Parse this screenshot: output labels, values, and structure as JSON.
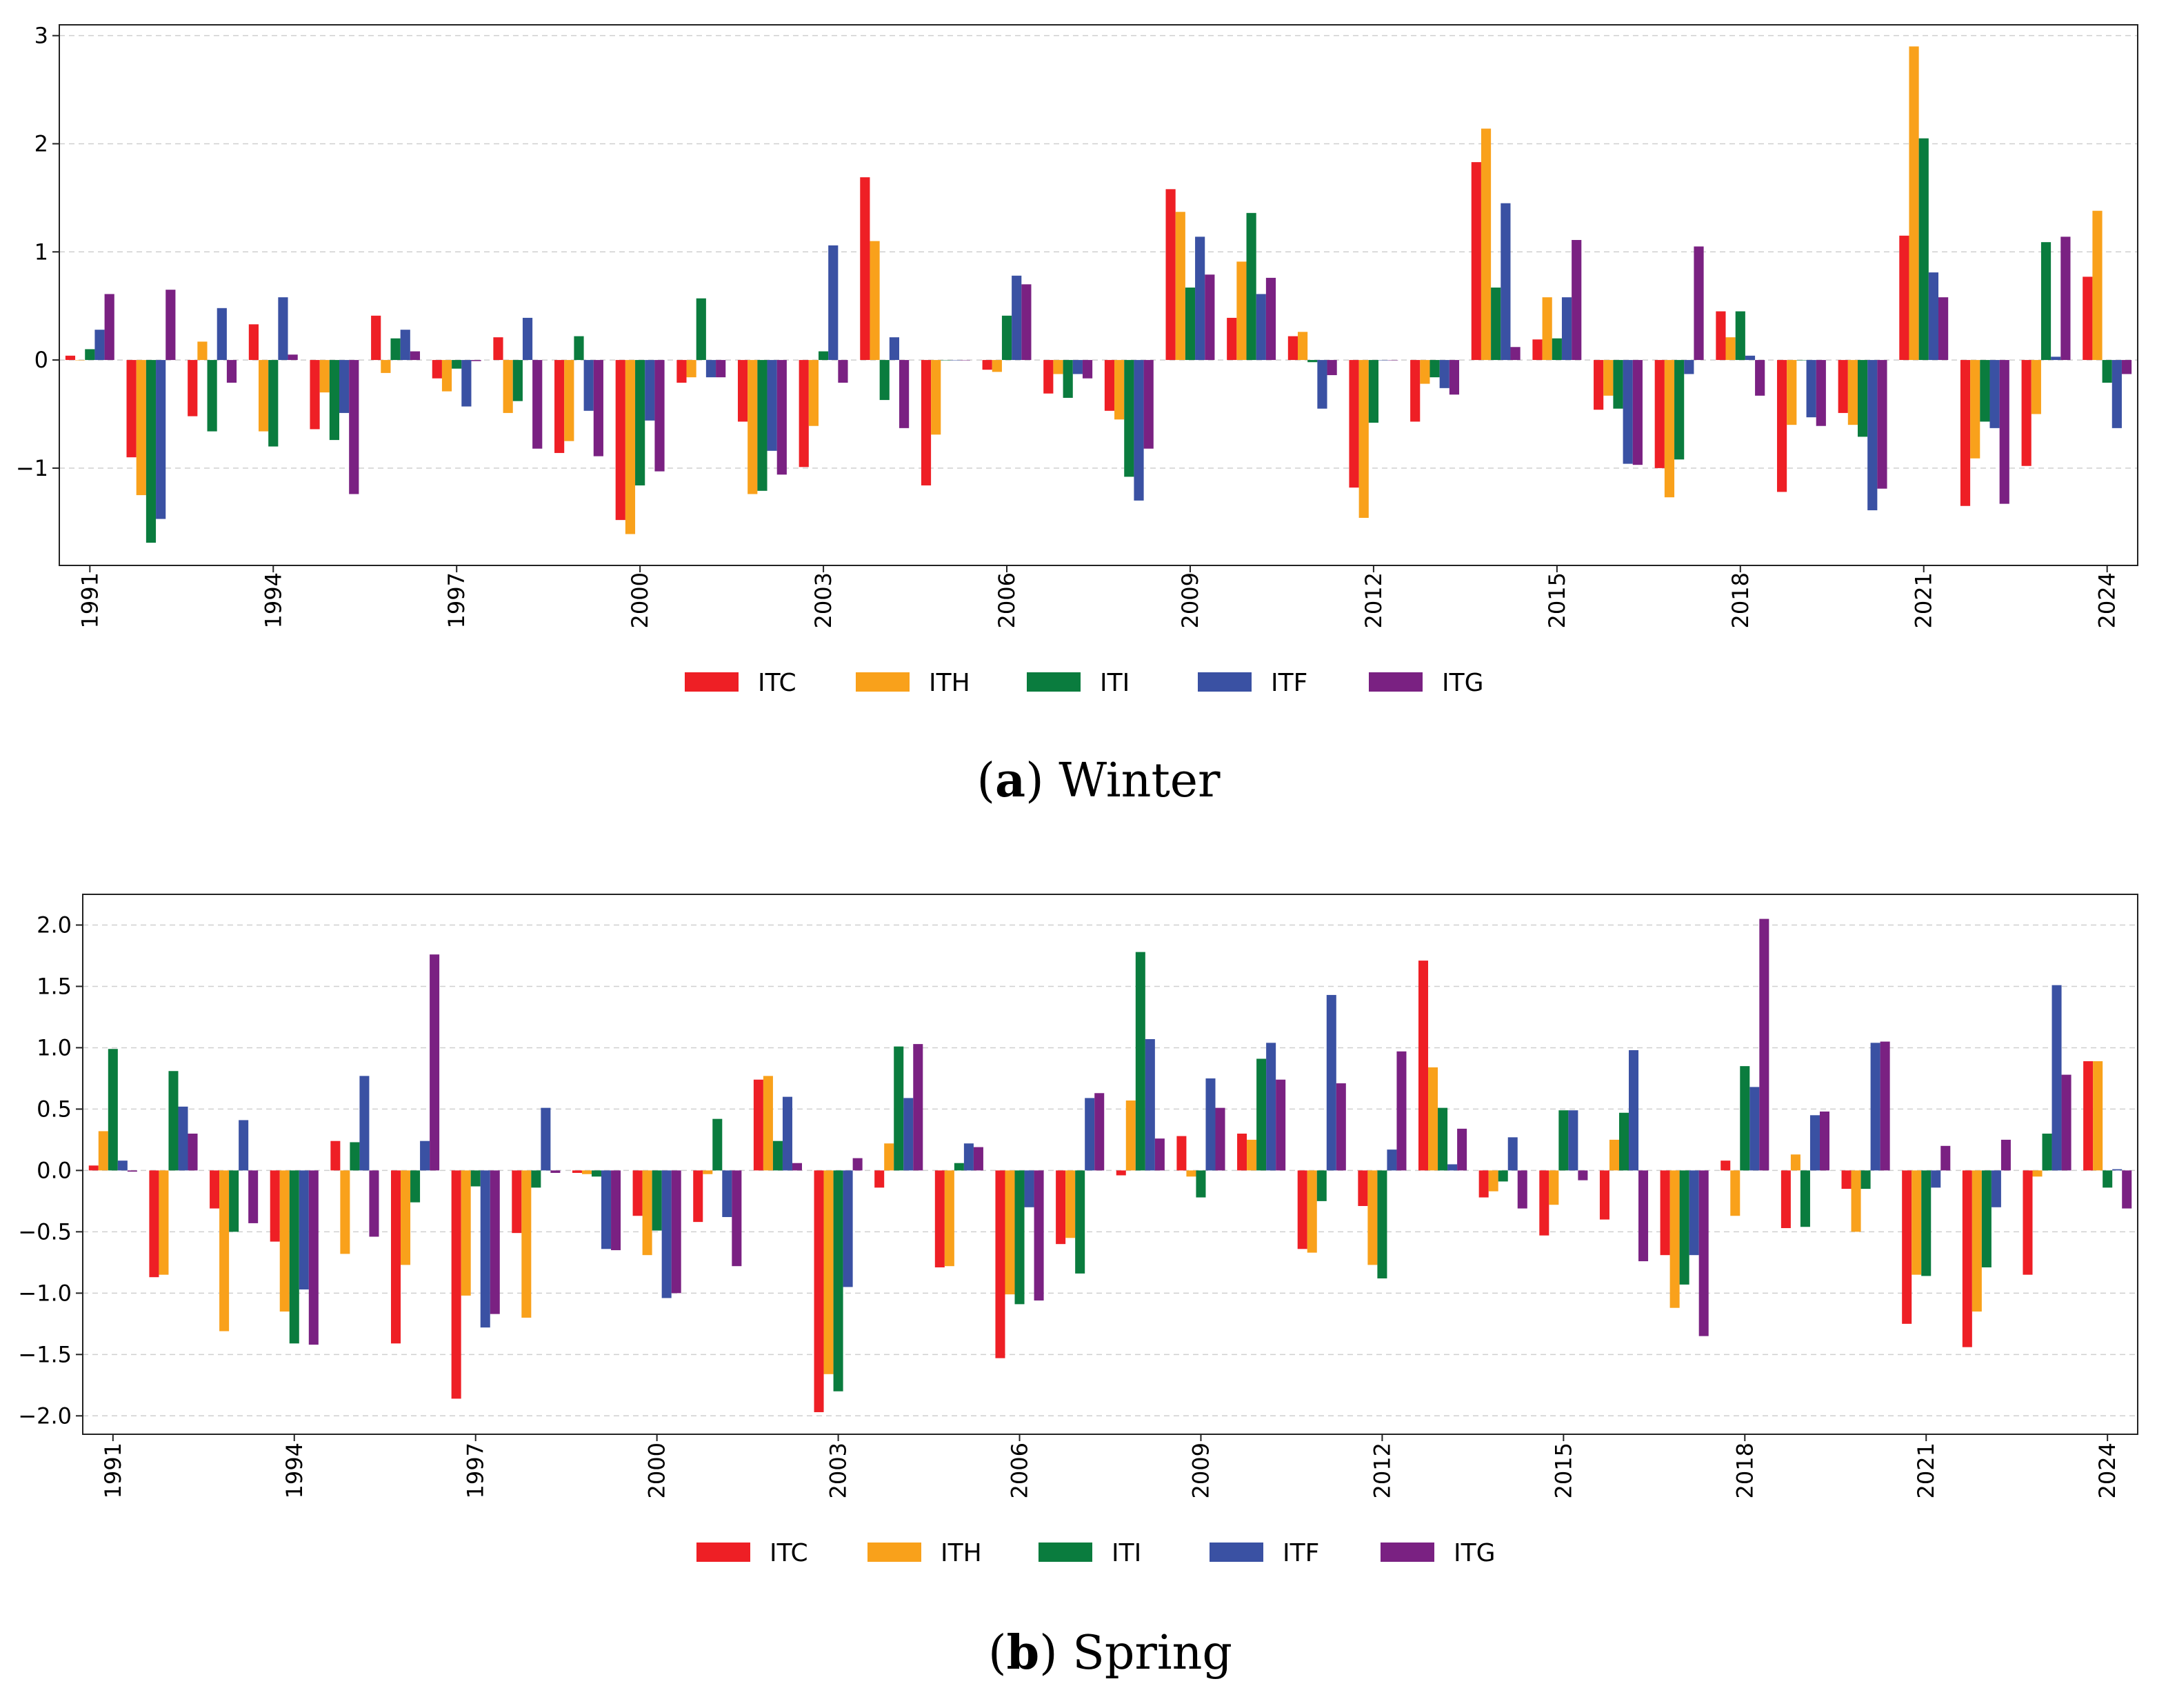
{
  "chart_data": [
    {
      "type": "bar",
      "panel": "a",
      "caption": "Winter",
      "caption_letter": "a",
      "x": [
        1991,
        1992,
        1993,
        1994,
        1995,
        1996,
        1997,
        1998,
        1999,
        2000,
        2001,
        2002,
        2003,
        2004,
        2005,
        2006,
        2007,
        2008,
        2009,
        2010,
        2011,
        2012,
        2013,
        2014,
        2015,
        2016,
        2017,
        2018,
        2019,
        2020,
        2021,
        2022,
        2023,
        2024
      ],
      "xticks": [
        "1991",
        "1994",
        "1997",
        "2000",
        "2003",
        "2006",
        "2009",
        "2012",
        "2015",
        "2018",
        "2021",
        "2024"
      ],
      "yticks": [
        -1,
        0,
        1,
        2,
        3
      ],
      "ytick_labels": [
        "−1",
        "0",
        "1",
        "2",
        "3"
      ],
      "ylim": [
        -1.9,
        3.1
      ],
      "grid": "y-dashed",
      "legend": "bottom-center",
      "series": [
        {
          "name": "ITC",
          "color": "#ee1f25",
          "values": [
            0.04,
            -0.9,
            -0.52,
            0.33,
            -0.64,
            0.41,
            -0.17,
            0.21,
            -0.86,
            -1.48,
            -0.21,
            -0.57,
            -0.99,
            1.69,
            -1.16,
            -0.09,
            -0.31,
            -0.47,
            1.58,
            0.39,
            0.22,
            -1.18,
            -0.57,
            1.83,
            0.19,
            -0.46,
            -1.0,
            0.45,
            -1.22,
            -0.49,
            1.15,
            -1.35,
            -0.98,
            0.77
          ]
        },
        {
          "name": "ITH",
          "color": "#f9a11b",
          "values": [
            0.0,
            -1.25,
            0.17,
            -0.66,
            -0.3,
            -0.12,
            -0.29,
            -0.49,
            -0.75,
            -1.61,
            -0.16,
            -1.24,
            -0.61,
            1.1,
            -0.69,
            -0.11,
            -0.13,
            -0.55,
            1.37,
            0.91,
            0.26,
            -1.46,
            -0.22,
            2.14,
            0.58,
            -0.33,
            -1.27,
            0.21,
            -0.6,
            -0.6,
            2.9,
            -0.91,
            -0.5,
            1.38
          ]
        },
        {
          "name": "ITI",
          "color": "#0a7c3e",
          "values": [
            0.1,
            -1.69,
            -0.66,
            -0.8,
            -0.74,
            0.2,
            -0.08,
            -0.38,
            0.22,
            -1.16,
            0.57,
            -1.21,
            0.08,
            -0.37,
            0.0,
            0.41,
            -0.35,
            -1.08,
            0.67,
            1.36,
            -0.02,
            -0.58,
            -0.16,
            0.67,
            0.2,
            -0.45,
            -0.92,
            0.45,
            0.0,
            -0.71,
            2.05,
            -0.57,
            1.09,
            -0.21
          ]
        },
        {
          "name": "ITF",
          "color": "#3a51a3",
          "values": [
            0.28,
            -1.47,
            0.48,
            0.58,
            -0.49,
            0.28,
            -0.43,
            0.39,
            -0.47,
            -0.56,
            -0.16,
            -0.84,
            1.06,
            0.21,
            0.0,
            0.78,
            -0.13,
            -1.3,
            1.14,
            0.61,
            -0.45,
            0.0,
            -0.26,
            1.45,
            0.58,
            -0.96,
            -0.13,
            0.04,
            -0.53,
            -1.39,
            0.81,
            -0.63,
            0.03,
            -0.63
          ]
        },
        {
          "name": "ITG",
          "color": "#7a2182",
          "values": [
            0.61,
            0.65,
            -0.21,
            0.05,
            -1.24,
            0.08,
            -0.01,
            -0.82,
            -0.89,
            -1.03,
            -0.16,
            -1.06,
            -0.21,
            -0.63,
            0.0,
            0.7,
            -0.17,
            -0.82,
            0.79,
            0.76,
            -0.14,
            0.0,
            -0.32,
            0.12,
            1.11,
            -0.97,
            1.05,
            -0.33,
            -0.61,
            -1.19,
            0.58,
            -1.33,
            1.14,
            -0.13
          ]
        }
      ]
    },
    {
      "type": "bar",
      "panel": "b",
      "caption": "Spring",
      "caption_letter": "b",
      "x": [
        1991,
        1992,
        1993,
        1994,
        1995,
        1996,
        1997,
        1998,
        1999,
        2000,
        2001,
        2002,
        2003,
        2004,
        2005,
        2006,
        2007,
        2008,
        2009,
        2010,
        2011,
        2012,
        2013,
        2014,
        2015,
        2016,
        2017,
        2018,
        2019,
        2020,
        2021,
        2022,
        2023,
        2024
      ],
      "xticks": [
        "1991",
        "1994",
        "1997",
        "2000",
        "2003",
        "2006",
        "2009",
        "2012",
        "2015",
        "2018",
        "2021",
        "2024"
      ],
      "yticks": [
        -2.0,
        -1.5,
        -1.0,
        -0.5,
        0.0,
        0.5,
        1.0,
        1.5,
        2.0
      ],
      "ytick_labels": [
        "−2.0",
        "−1.5",
        "−1.0",
        "−0.5",
        "0.0",
        "0.5",
        "1.0",
        "1.5",
        "2.0"
      ],
      "ylim": [
        -2.15,
        2.25
      ],
      "grid": "y-dashed",
      "legend": "bottom-center",
      "series": [
        {
          "name": "ITC",
          "color": "#ee1f25",
          "values": [
            0.04,
            -0.87,
            -0.31,
            -0.58,
            0.24,
            -1.41,
            -1.86,
            -0.51,
            -0.02,
            -0.37,
            -0.42,
            0.74,
            -1.97,
            -0.14,
            -0.79,
            -1.53,
            -0.6,
            -0.04,
            0.28,
            0.3,
            -0.64,
            -0.29,
            1.71,
            -0.22,
            -0.53,
            -0.4,
            -0.69,
            0.08,
            -0.47,
            -0.15,
            -1.25,
            -1.44,
            -0.85,
            0.89
          ]
        },
        {
          "name": "ITH",
          "color": "#f9a11b",
          "values": [
            0.32,
            -0.85,
            -1.31,
            -1.15,
            -0.68,
            -0.77,
            -1.02,
            -1.2,
            -0.03,
            -0.69,
            -0.03,
            0.77,
            -1.66,
            0.22,
            -0.78,
            -1.01,
            -0.55,
            0.57,
            -0.05,
            0.25,
            -0.67,
            -0.77,
            0.84,
            -0.17,
            -0.28,
            0.25,
            -1.12,
            -0.37,
            0.13,
            -0.5,
            -0.85,
            -1.15,
            -0.05,
            0.89
          ]
        },
        {
          "name": "ITI",
          "color": "#0a7c3e",
          "values": [
            0.99,
            0.81,
            -0.5,
            -1.41,
            0.23,
            -0.26,
            -0.13,
            -0.14,
            -0.05,
            -0.49,
            0.42,
            0.24,
            -1.8,
            1.01,
            0.06,
            -1.09,
            -0.84,
            1.78,
            -0.22,
            0.91,
            -0.25,
            -0.88,
            0.51,
            -0.09,
            0.49,
            0.47,
            -0.93,
            0.85,
            -0.46,
            -0.15,
            -0.86,
            -0.79,
            0.3,
            -0.14
          ]
        },
        {
          "name": "ITF",
          "color": "#3a51a3",
          "values": [
            0.08,
            0.52,
            0.41,
            -0.97,
            0.77,
            0.24,
            -1.28,
            0.51,
            -0.64,
            -1.04,
            -0.38,
            0.6,
            -0.95,
            0.59,
            0.22,
            -0.3,
            0.59,
            1.07,
            0.75,
            1.04,
            1.43,
            0.17,
            0.05,
            0.27,
            0.49,
            0.98,
            -0.69,
            0.68,
            0.45,
            1.04,
            -0.14,
            -0.3,
            1.51,
            0.01
          ]
        },
        {
          "name": "ITG",
          "color": "#7a2182",
          "values": [
            -0.01,
            0.3,
            -0.43,
            -1.42,
            -0.54,
            1.76,
            -1.17,
            -0.02,
            -0.65,
            -1.0,
            -0.78,
            0.06,
            0.1,
            1.03,
            0.19,
            -1.06,
            0.63,
            0.26,
            0.51,
            0.74,
            0.71,
            0.97,
            0.34,
            -0.31,
            -0.08,
            -0.74,
            -1.35,
            2.05,
            0.48,
            1.05,
            0.2,
            0.25,
            0.78,
            -0.31
          ]
        }
      ]
    }
  ]
}
